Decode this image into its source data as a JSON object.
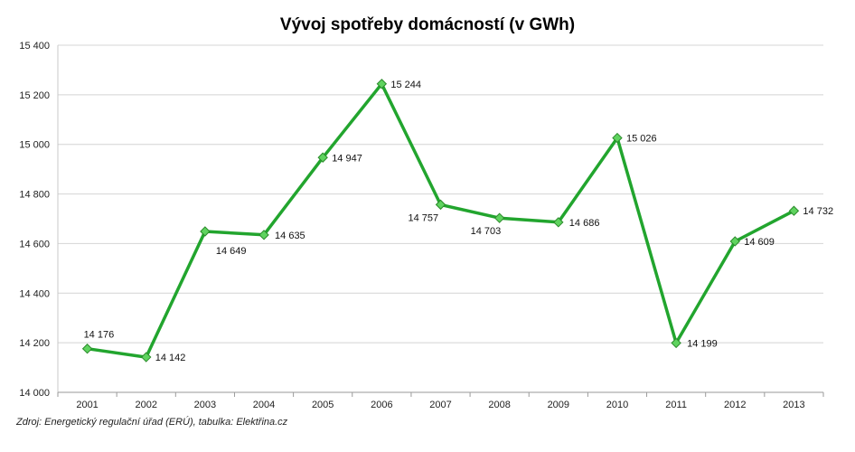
{
  "chart_data": {
    "type": "line",
    "title": "Vývoj spotřeby domácností (v GWh)",
    "xlabel": "",
    "ylabel": "",
    "categories": [
      "2001",
      "2002",
      "2003",
      "2004",
      "2005",
      "2006",
      "2007",
      "2008",
      "2009",
      "2010",
      "2011",
      "2012",
      "2013"
    ],
    "series": [
      {
        "values": [
          14176,
          14142,
          14649,
          14635,
          14947,
          15244,
          14757,
          14703,
          14686,
          15026,
          14199,
          14609,
          14732
        ]
      }
    ],
    "data_labels": [
      "14 176",
      "14 142",
      "14 649",
      "14 635",
      "14 947",
      "15 244",
      "14 757",
      "14 703",
      "14 686",
      "15 026",
      "14 199",
      "14 609",
      "14 732"
    ],
    "ylim": [
      14000,
      15400
    ],
    "yticks": [
      14000,
      14200,
      14400,
      14600,
      14800,
      15000,
      15200,
      15400
    ],
    "ytick_labels": [
      "14 000",
      "14 200",
      "14 400",
      "14 600",
      "14 800",
      "15 000",
      "15 200",
      "15 400"
    ],
    "grid": true,
    "colors": {
      "line": "#22a52e",
      "marker": "#5fd35f",
      "marker_stroke": "#2a8a2a",
      "grid": "#d4d4d4"
    }
  },
  "source_note": "Zdroj: Energetický regulační úřad (ERÚ), tabulka: Elektřina.cz"
}
